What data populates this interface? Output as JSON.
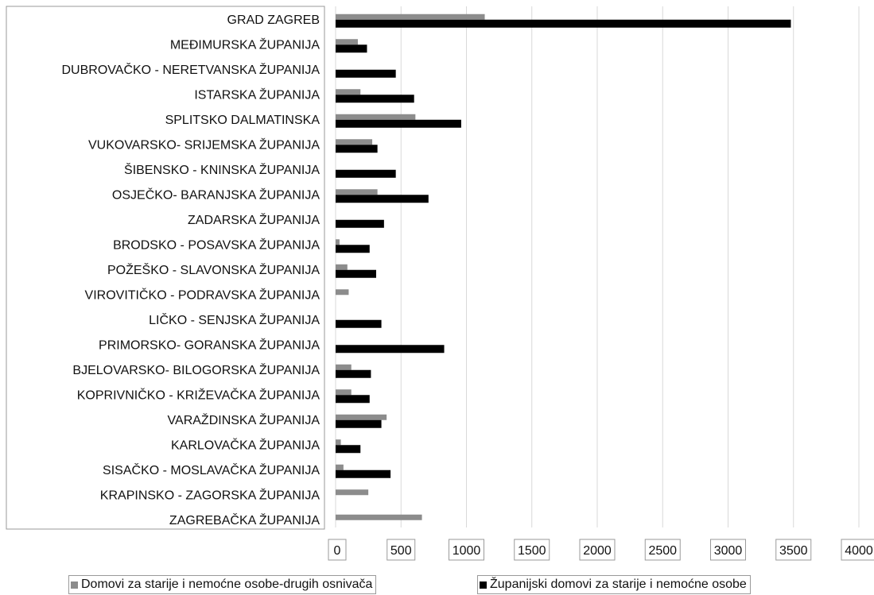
{
  "chart_data": {
    "type": "bar",
    "orientation": "horizontal",
    "categories": [
      "GRAD ZAGREB",
      "MEĐIMURSKA ŽUPANIJA",
      "DUBROVAČKO - NERETVANSKA ŽUPANIJA",
      "ISTARSKA ŽUPANIJA",
      "SPLITSKO DALMATINSKA",
      "VUKOVARSKO- SRIJEMSKA ŽUPANIJA",
      "ŠIBENSKO - KNINSKA ŽUPANIJA",
      "OSJEČKO- BARANJSKA ŽUPANIJA",
      "ZADARSKA ŽUPANIJA",
      "BRODSKO - POSAVSKA ŽUPANIJA",
      "POŽEŠKO - SLAVONSKA ŽUPANIJA",
      "VIROVITIČKO - PODRAVSKA ŽUPANIJA",
      "LIČKO - SENJSKA ŽUPANIJA",
      "PRIMORSKO- GORANSKA ŽUPANIJA",
      "BJELOVARSKO- BILOGORSKA ŽUPANIJA",
      "KOPRIVNIČKO - KRIŽEVAČKA ŽUPANIJA",
      "VARAŽDINSKA ŽUPANIJA",
      "KARLOVAČKA ŽUPANIJA",
      "SISAČKO - MOSLAVAČKA ŽUPANIJA",
      "KRAPINSKO - ZAGORSKA ŽUPANIJA",
      "ZAGREBAČKA ŽUPANIJA"
    ],
    "series": [
      {
        "name": "Domovi za starije i nemoćne osobe-drugih osnivača",
        "color": "#8c8c8c",
        "values": [
          1140,
          170,
          0,
          190,
          610,
          280,
          0,
          320,
          0,
          30,
          90,
          100,
          0,
          0,
          120,
          120,
          390,
          40,
          60,
          250,
          660
        ]
      },
      {
        "name": "Županijski domovi za starije i nemoćne osobe",
        "color": "#000000",
        "values": [
          3480,
          240,
          460,
          600,
          960,
          320,
          460,
          710,
          370,
          260,
          310,
          0,
          350,
          830,
          270,
          260,
          350,
          190,
          420,
          0,
          0
        ]
      }
    ],
    "xlim": [
      0,
      4000
    ],
    "xticks": [
      "0",
      "500",
      "1000",
      "1500",
      "2000",
      "2500",
      "3000",
      "3500",
      "4000"
    ],
    "grid": true,
    "legend_position": "bottom"
  }
}
